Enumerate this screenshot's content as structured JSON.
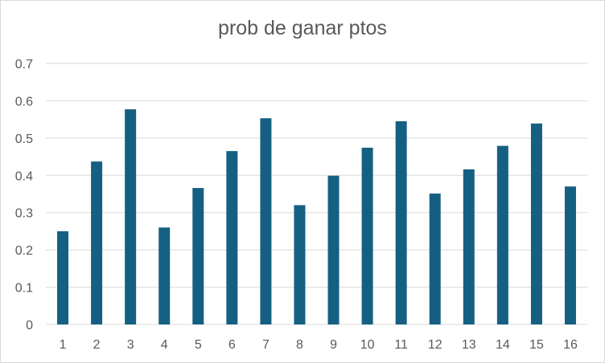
{
  "chart_data": {
    "type": "bar",
    "title": "prob de ganar ptos",
    "xlabel": "",
    "ylabel": "",
    "categories": [
      "1",
      "2",
      "3",
      "4",
      "5",
      "6",
      "7",
      "8",
      "9",
      "10",
      "11",
      "12",
      "13",
      "14",
      "15",
      "16"
    ],
    "values": [
      0.25,
      0.437,
      0.577,
      0.26,
      0.366,
      0.465,
      0.553,
      0.32,
      0.399,
      0.474,
      0.545,
      0.351,
      0.416,
      0.479,
      0.539,
      0.37
    ],
    "ylim": [
      0,
      0.7
    ],
    "yticks": [
      "0",
      "0.1",
      "0.2",
      "0.3",
      "0.4",
      "0.5",
      "0.6",
      "0.7"
    ],
    "grid": true,
    "legend": "none",
    "colors": {
      "bar": "#156082",
      "grid": "#d9d9d9",
      "text": "#595959"
    }
  }
}
